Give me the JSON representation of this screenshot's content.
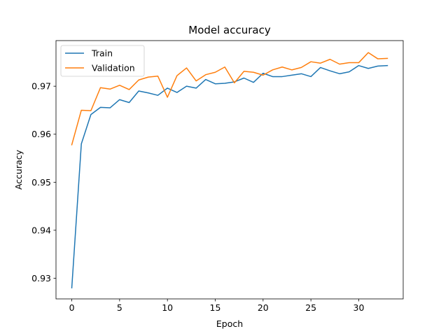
{
  "chart_data": {
    "type": "line",
    "title": "Model accuracy",
    "xlabel": "Epoch",
    "ylabel": "Accuracy",
    "xlim": [
      -1.65,
      34.65
    ],
    "ylim": [
      0.9257,
      0.9795
    ],
    "xticks": [
      0,
      5,
      10,
      15,
      20,
      25,
      30
    ],
    "xtick_labels": [
      "0",
      "5",
      "10",
      "15",
      "20",
      "25",
      "30"
    ],
    "yticks": [
      0.93,
      0.94,
      0.95,
      0.96,
      0.97
    ],
    "ytick_labels": [
      "0.93",
      "0.94",
      "0.95",
      "0.96",
      "0.97"
    ],
    "grid": false,
    "legend_position": "upper-left",
    "x": [
      0,
      1,
      2,
      3,
      4,
      5,
      6,
      7,
      8,
      9,
      10,
      11,
      12,
      13,
      14,
      15,
      16,
      17,
      18,
      19,
      20,
      21,
      22,
      23,
      24,
      25,
      26,
      27,
      28,
      29,
      30,
      31,
      32,
      33
    ],
    "series": [
      {
        "name": "Train",
        "color": "#1f77b4",
        "values": [
          0.928,
          0.958,
          0.9641,
          0.9656,
          0.9655,
          0.9672,
          0.9666,
          0.969,
          0.9686,
          0.9681,
          0.9696,
          0.9687,
          0.97,
          0.9696,
          0.9714,
          0.9705,
          0.9706,
          0.9709,
          0.9717,
          0.9708,
          0.9727,
          0.972,
          0.972,
          0.9723,
          0.9726,
          0.972,
          0.9739,
          0.9732,
          0.9726,
          0.973,
          0.9743,
          0.9737,
          0.9742,
          0.9743
        ]
      },
      {
        "name": "Validation",
        "color": "#ff7f0e",
        "values": [
          0.9578,
          0.965,
          0.9649,
          0.9697,
          0.9694,
          0.9702,
          0.9693,
          0.9713,
          0.9719,
          0.9721,
          0.9677,
          0.9722,
          0.9738,
          0.9711,
          0.9724,
          0.9729,
          0.974,
          0.9707,
          0.9731,
          0.9729,
          0.9723,
          0.9734,
          0.974,
          0.9734,
          0.9739,
          0.9751,
          0.9748,
          0.9756,
          0.9746,
          0.9749,
          0.9749,
          0.977,
          0.9757,
          0.9758
        ]
      }
    ]
  }
}
